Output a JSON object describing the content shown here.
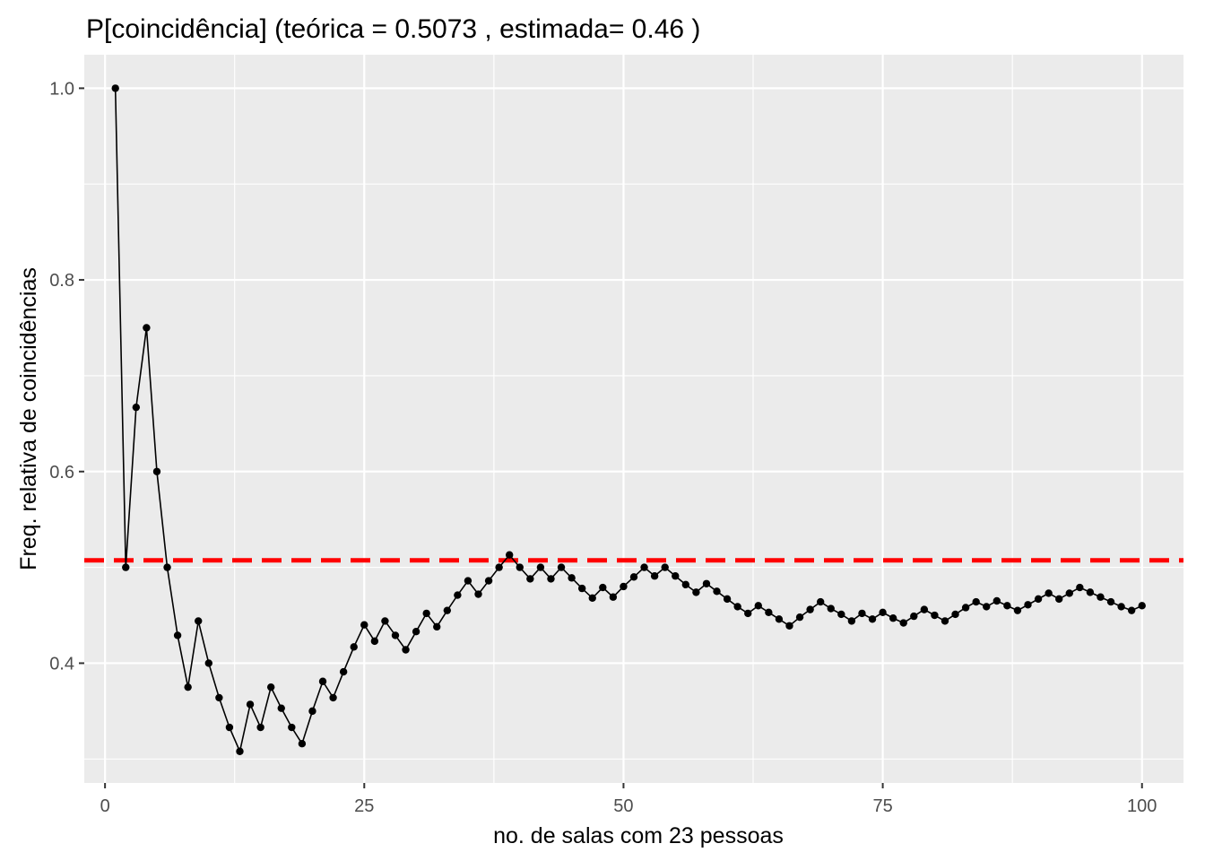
{
  "chart_data": {
    "type": "line",
    "title": "P[coincidência] (teórica = 0.5073 , estimada= 0.46 )",
    "xlabel": "no. de salas com 23 pessoas",
    "ylabel": "Freq. relativa de coincidências",
    "xlim": [
      -2,
      104
    ],
    "ylim": [
      0.275,
      1.035
    ],
    "x_ticks": [
      0,
      25,
      50,
      75,
      100
    ],
    "x_tick_labels": [
      "0",
      "25",
      "50",
      "75",
      "100"
    ],
    "y_ticks": [
      0.4,
      0.6,
      0.8,
      1.0
    ],
    "y_tick_labels": [
      "0.4",
      "0.6",
      "0.8",
      "1.0"
    ],
    "grid": true,
    "legend": "none",
    "colors": {
      "panel_bg": "#ebebeb",
      "grid": "#ffffff",
      "series": "#000000",
      "reference": "#ff0000"
    },
    "reference_line": {
      "y": 0.5073,
      "style": "dashed",
      "color": "#ff0000"
    },
    "series": [
      {
        "x": [
          1,
          2,
          3,
          4,
          5,
          6,
          7,
          8,
          9,
          10,
          11,
          12,
          13,
          14,
          15,
          16,
          17,
          18,
          19,
          20,
          21,
          22,
          23,
          24,
          25,
          26,
          27,
          28,
          29,
          30,
          31,
          32,
          33,
          34,
          35,
          36,
          37,
          38,
          39,
          40,
          41,
          42,
          43,
          44,
          45,
          46,
          47,
          48,
          49,
          50,
          51,
          52,
          53,
          54,
          55,
          56,
          57,
          58,
          59,
          60,
          61,
          62,
          63,
          64,
          65,
          66,
          67,
          68,
          69,
          70,
          71,
          72,
          73,
          74,
          75,
          76,
          77,
          78,
          79,
          80,
          81,
          82,
          83,
          84,
          85,
          86,
          87,
          88,
          89,
          90,
          91,
          92,
          93,
          94,
          95,
          96,
          97,
          98,
          99,
          100
        ],
        "values": [
          1.0,
          0.5,
          0.667,
          0.75,
          0.6,
          0.5,
          0.429,
          0.375,
          0.444,
          0.4,
          0.364,
          0.333,
          0.308,
          0.357,
          0.333,
          0.375,
          0.353,
          0.333,
          0.316,
          0.35,
          0.381,
          0.364,
          0.391,
          0.417,
          0.44,
          0.423,
          0.444,
          0.429,
          0.414,
          0.433,
          0.452,
          0.438,
          0.455,
          0.471,
          0.486,
          0.472,
          0.486,
          0.5,
          0.513,
          0.5,
          0.488,
          0.5,
          0.488,
          0.5,
          0.489,
          0.478,
          0.468,
          0.479,
          0.469,
          0.48,
          0.49,
          0.5,
          0.491,
          0.5,
          0.491,
          0.482,
          0.474,
          0.483,
          0.475,
          0.467,
          0.459,
          0.452,
          0.46,
          0.453,
          0.446,
          0.439,
          0.448,
          0.456,
          0.464,
          0.457,
          0.451,
          0.444,
          0.452,
          0.446,
          0.453,
          0.447,
          0.442,
          0.449,
          0.456,
          0.45,
          0.444,
          0.451,
          0.458,
          0.464,
          0.459,
          0.465,
          0.46,
          0.455,
          0.461,
          0.467,
          0.473,
          0.467,
          0.473,
          0.479,
          0.474,
          0.469,
          0.464,
          0.459,
          0.455,
          0.46
        ]
      }
    ]
  }
}
